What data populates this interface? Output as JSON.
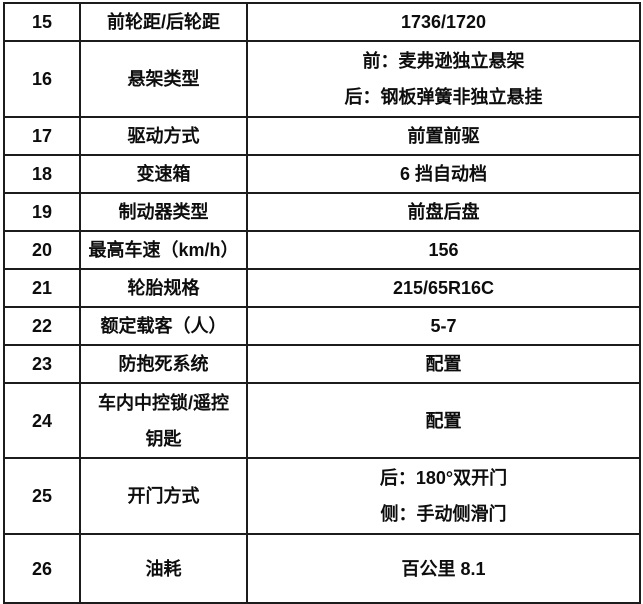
{
  "colors": {
    "border": "#1c1c1c",
    "text": "#0d0d0d",
    "background": "#ffffff"
  },
  "table": {
    "rows": [
      {
        "num": "15",
        "label": "前轮距/后轮距",
        "value": "1736/1720"
      },
      {
        "num": "16",
        "label": "悬架类型",
        "value": "前：麦弗逊独立悬架\n后：钢板弹簧非独立悬挂"
      },
      {
        "num": "17",
        "label": "驱动方式",
        "value": "前置前驱"
      },
      {
        "num": "18",
        "label": "变速箱",
        "value": "6 挡自动档"
      },
      {
        "num": "19",
        "label": "制动器类型",
        "value": "前盘后盘"
      },
      {
        "num": "20",
        "label": "最高车速（km/h）",
        "value": "156"
      },
      {
        "num": "21",
        "label": "轮胎规格",
        "value": "215/65R16C"
      },
      {
        "num": "22",
        "label": "额定载客（人）",
        "value": "5-7"
      },
      {
        "num": "23",
        "label": "防抱死系统",
        "value": "配置"
      },
      {
        "num": "24",
        "label": "车内中控锁/遥控\n钥匙",
        "value": "配置"
      },
      {
        "num": "25",
        "label": "开门方式",
        "value": "后：180°双开门\n侧：手动侧滑门"
      },
      {
        "num": "26",
        "label": "油耗",
        "value": "百公里 8.1"
      }
    ]
  }
}
